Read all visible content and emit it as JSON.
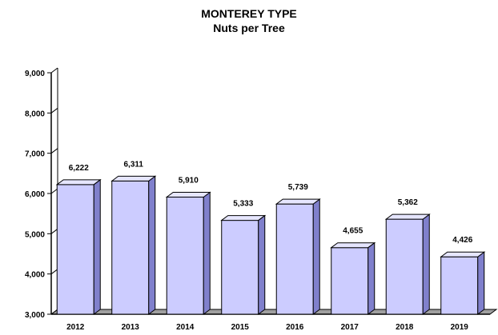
{
  "chart_data": {
    "type": "bar",
    "title": "MONTEREY TYPE",
    "subtitle": "Nuts per Tree",
    "xlabel": "",
    "ylabel": "",
    "categories": [
      "2012",
      "2013",
      "2014",
      "2015",
      "2016",
      "2017",
      "2018",
      "2019"
    ],
    "values": [
      6222,
      6311,
      5910,
      5333,
      5739,
      4655,
      5362,
      4426
    ],
    "value_labels": [
      "6,222",
      "6,311",
      "5,910",
      "5,333",
      "5,739",
      "4,655",
      "5,362",
      "4,426"
    ],
    "ylim": [
      3000,
      9000
    ],
    "yticks": [
      3000,
      4000,
      5000,
      6000,
      7000,
      8000,
      9000
    ],
    "ytick_labels": [
      "3,000",
      "4,000",
      "5,000",
      "6,000",
      "7,000",
      "8,000",
      "9,000"
    ],
    "grid": false,
    "legend": "none",
    "bar_color": "#ccccff",
    "bar_side_color": "#8080cc",
    "bar_top_color": "#e6e6ff",
    "floor_color": "#a0a0a0"
  }
}
